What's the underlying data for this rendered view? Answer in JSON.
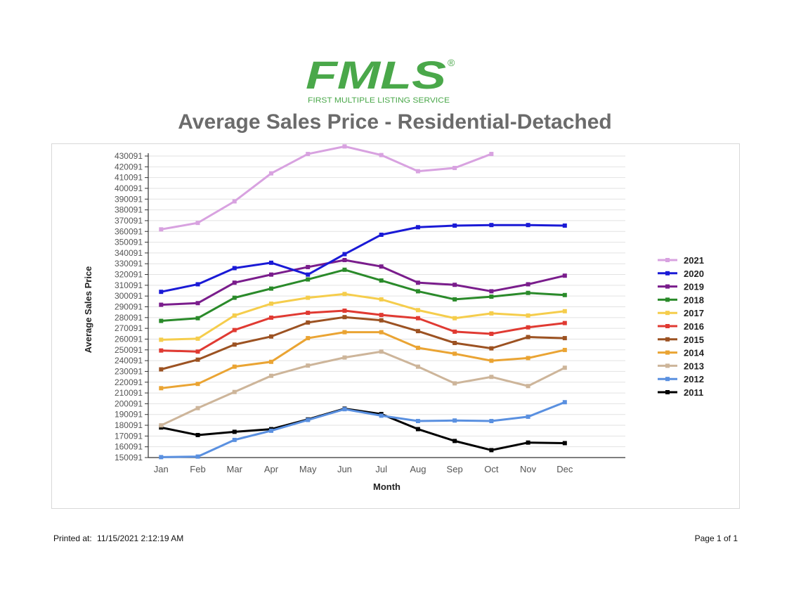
{
  "logo": {
    "main": "FMLS",
    "tagline": "FIRST MULTIPLE LISTING SERVICE",
    "mark": "®",
    "color": "#4aa84a"
  },
  "page_title": "Average Sales Price - Residential-Detached",
  "footer": {
    "printed_label": "Printed at:",
    "printed_value": "11/15/2021 2:12:19 AM",
    "page": "Page 1 of 1"
  },
  "chart_data": {
    "type": "line",
    "title": "",
    "xlabel": "Month",
    "ylabel": "Average Sales Price",
    "categories": [
      "Jan",
      "Feb",
      "Mar",
      "Apr",
      "May",
      "Jun",
      "Jul",
      "Aug",
      "Sep",
      "Oct",
      "Nov",
      "Dec"
    ],
    "ylim": [
      150091,
      430091
    ],
    "yticks": [
      150091,
      160091,
      170091,
      180091,
      190091,
      200091,
      210091,
      220091,
      230091,
      240091,
      250091,
      260091,
      270091,
      280091,
      290091,
      300091,
      310091,
      320091,
      330091,
      340091,
      350091,
      360091,
      370091,
      380091,
      390091,
      400091,
      410091,
      420091,
      430091
    ],
    "grid": true,
    "legend_position": "right",
    "series": [
      {
        "name": "2021",
        "color": "#d8a2e0",
        "values": [
          362000,
          368000,
          388000,
          414000,
          432000,
          439000,
          431000,
          416000,
          419000,
          432000,
          null,
          null
        ]
      },
      {
        "name": "2020",
        "color": "#1a1ad6",
        "values": [
          304000,
          311000,
          326000,
          331000,
          320000,
          339000,
          357000,
          364000,
          365500,
          366000,
          366000,
          365500
        ]
      },
      {
        "name": "2019",
        "color": "#7a1d8c",
        "values": [
          292000,
          293500,
          312500,
          320000,
          327000,
          333500,
          327500,
          312500,
          310500,
          304500,
          311000,
          319000
        ]
      },
      {
        "name": "2018",
        "color": "#2a8a2a",
        "values": [
          277000,
          279500,
          298500,
          307000,
          315500,
          324500,
          314500,
          304500,
          297000,
          299500,
          303000,
          301000
        ]
      },
      {
        "name": "2017",
        "color": "#f5cd4c",
        "values": [
          259500,
          260500,
          282000,
          293000,
          298500,
          302000,
          297000,
          287000,
          279500,
          284000,
          282000,
          286000
        ]
      },
      {
        "name": "2016",
        "color": "#e03a32",
        "values": [
          249500,
          248500,
          268500,
          280000,
          284500,
          286500,
          282500,
          279500,
          267000,
          265000,
          271000,
          275000
        ]
      },
      {
        "name": "2015",
        "color": "#9c5222",
        "values": [
          232000,
          241000,
          255000,
          262500,
          275500,
          280500,
          277500,
          267500,
          256500,
          251500,
          262000,
          261000
        ]
      },
      {
        "name": "2014",
        "color": "#eaa433",
        "values": [
          214500,
          218500,
          234500,
          239000,
          261000,
          266500,
          266500,
          252000,
          246500,
          240000,
          242500,
          250000
        ]
      },
      {
        "name": "2013",
        "color": "#cdb59a",
        "values": [
          180000,
          196000,
          211000,
          226000,
          235500,
          243000,
          248500,
          234500,
          219000,
          225000,
          216500,
          233500
        ]
      },
      {
        "name": "2012",
        "color": "#5a90e0",
        "values": [
          150500,
          151000,
          166500,
          175000,
          185000,
          195000,
          189000,
          184000,
          184500,
          184000,
          188000,
          201500
        ]
      },
      {
        "name": "2011",
        "color": "#000000",
        "values": [
          178000,
          171000,
          174000,
          176500,
          185500,
          195500,
          190500,
          176500,
          165500,
          157000,
          164000,
          163500
        ]
      }
    ]
  }
}
